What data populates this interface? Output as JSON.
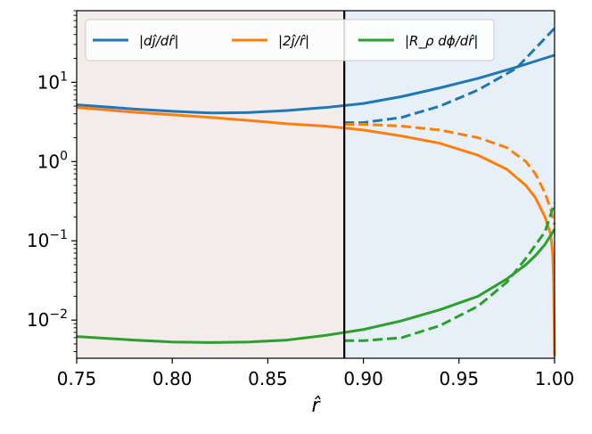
{
  "chart_data": {
    "type": "line",
    "title": "",
    "xlabel": "r̂",
    "ylabel": "",
    "yscale": "log",
    "xlim": [
      0.75,
      1.0
    ],
    "ylim": [
      0.0033,
      80
    ],
    "xticks": [
      {
        "value": 0.75,
        "label": "0.75"
      },
      {
        "value": 0.8,
        "label": "0.80"
      },
      {
        "value": 0.85,
        "label": "0.85"
      },
      {
        "value": 0.9,
        "label": "0.90"
      },
      {
        "value": 0.95,
        "label": "0.95"
      },
      {
        "value": 1.0,
        "label": "1.00"
      }
    ],
    "yticks": [
      {
        "value": 0.01,
        "base": "10",
        "exp": "−2"
      },
      {
        "value": 0.1,
        "base": "10",
        "exp": "−1"
      },
      {
        "value": 1,
        "base": "10",
        "exp": "0"
      },
      {
        "value": 10,
        "base": "10",
        "exp": "1"
      }
    ],
    "regions": [
      {
        "x_range": [
          0.75,
          0.89
        ],
        "color": "#f2eceb"
      },
      {
        "x_range": [
          0.89,
          1.0
        ],
        "color": "#e7f0f8"
      }
    ],
    "vline": {
      "x": 0.89,
      "color": "#000000"
    },
    "legend": {
      "placement": "top",
      "columns": 3
    },
    "series": [
      {
        "name": "|dĵ/dr̂|",
        "color": "#1f77b4",
        "style": "solid",
        "points": [
          [
            0.75,
            5.2
          ],
          [
            0.78,
            4.6
          ],
          [
            0.8,
            4.3
          ],
          [
            0.82,
            4.1
          ],
          [
            0.84,
            4.15
          ],
          [
            0.86,
            4.4
          ],
          [
            0.88,
            4.8
          ],
          [
            0.9,
            5.4
          ],
          [
            0.92,
            6.6
          ],
          [
            0.94,
            8.5
          ],
          [
            0.96,
            11.2
          ],
          [
            0.98,
            15.5
          ],
          [
            1.0,
            22.0
          ]
        ]
      },
      {
        "name": "|2ĵ/r̂|",
        "color": "#ff7f0e",
        "style": "solid",
        "points": [
          [
            0.75,
            4.8
          ],
          [
            0.78,
            4.2
          ],
          [
            0.8,
            3.9
          ],
          [
            0.82,
            3.6
          ],
          [
            0.84,
            3.3
          ],
          [
            0.86,
            3.0
          ],
          [
            0.88,
            2.8
          ],
          [
            0.9,
            2.5
          ],
          [
            0.92,
            2.1
          ],
          [
            0.94,
            1.7
          ],
          [
            0.96,
            1.2
          ],
          [
            0.975,
            0.8
          ],
          [
            0.985,
            0.5
          ],
          [
            0.99,
            0.35
          ],
          [
            0.995,
            0.2
          ],
          [
            0.998,
            0.12
          ],
          [
            0.999,
            0.07
          ],
          [
            0.9995,
            0.03
          ],
          [
            1.0,
            0.0035
          ]
        ]
      },
      {
        "name": "|R_ρ dϕ/dr̂|",
        "color": "#2ca02c",
        "style": "solid",
        "points": [
          [
            0.75,
            0.0062
          ],
          [
            0.78,
            0.0056
          ],
          [
            0.8,
            0.0053
          ],
          [
            0.82,
            0.0052
          ],
          [
            0.84,
            0.0053
          ],
          [
            0.86,
            0.0056
          ],
          [
            0.88,
            0.0064
          ],
          [
            0.9,
            0.0076
          ],
          [
            0.92,
            0.0098
          ],
          [
            0.94,
            0.0135
          ],
          [
            0.96,
            0.02
          ],
          [
            0.975,
            0.033
          ],
          [
            0.985,
            0.05
          ],
          [
            0.99,
            0.065
          ],
          [
            0.995,
            0.09
          ],
          [
            1.0,
            0.14
          ]
        ]
      },
      {
        "name": "",
        "color": "#1f77b4",
        "style": "dashed",
        "points": [
          [
            0.89,
            3.1
          ],
          [
            0.9,
            3.1
          ],
          [
            0.92,
            3.6
          ],
          [
            0.94,
            5.0
          ],
          [
            0.96,
            8.0
          ],
          [
            0.98,
            15.0
          ],
          [
            1.0,
            48.0
          ]
        ]
      },
      {
        "name": "",
        "color": "#ff7f0e",
        "style": "dashed",
        "points": [
          [
            0.89,
            2.95
          ],
          [
            0.9,
            2.95
          ],
          [
            0.92,
            2.8
          ],
          [
            0.94,
            2.5
          ],
          [
            0.96,
            2.0
          ],
          [
            0.975,
            1.5
          ],
          [
            0.985,
            1.0
          ],
          [
            0.99,
            0.7
          ],
          [
            0.995,
            0.4
          ],
          [
            0.998,
            0.25
          ],
          [
            1.0,
            0.16
          ]
        ]
      },
      {
        "name": "",
        "color": "#2ca02c",
        "style": "dashed",
        "points": [
          [
            0.89,
            0.0055
          ],
          [
            0.9,
            0.0055
          ],
          [
            0.92,
            0.006
          ],
          [
            0.94,
            0.0085
          ],
          [
            0.96,
            0.015
          ],
          [
            0.975,
            0.03
          ],
          [
            0.985,
            0.06
          ],
          [
            0.995,
            0.13
          ],
          [
            1.0,
            0.3
          ]
        ]
      }
    ]
  }
}
